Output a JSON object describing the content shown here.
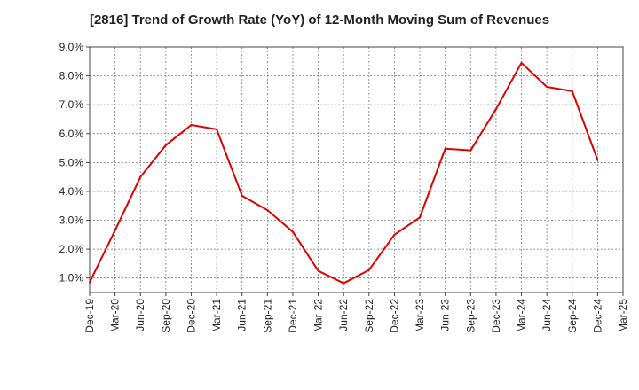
{
  "chart_data": {
    "type": "line",
    "title": "[2816]  Trend of Growth Rate (YoY) of 12-Month Moving Sum of Revenues",
    "xlabel": "",
    "ylabel": "",
    "x_ticks": [
      "Dec-19",
      "Mar-20",
      "Jun-20",
      "Sep-20",
      "Dec-20",
      "Mar-21",
      "Jun-21",
      "Sep-21",
      "Dec-21",
      "Mar-22",
      "Jun-22",
      "Sep-22",
      "Dec-22",
      "Mar-23",
      "Jun-23",
      "Sep-23",
      "Dec-23",
      "Mar-24",
      "Jun-24",
      "Sep-24",
      "Dec-24",
      "Mar-25"
    ],
    "y_ticks": [
      "1.0%",
      "2.0%",
      "3.0%",
      "4.0%",
      "5.0%",
      "6.0%",
      "7.0%",
      "8.0%",
      "9.0%"
    ],
    "ylim": [
      0.5,
      9.0
    ],
    "grid": true,
    "legend": "none",
    "series": [
      {
        "color": "#e00000",
        "x": [
          "Dec-19",
          "Mar-20",
          "Jun-20",
          "Sep-20",
          "Dec-20",
          "Mar-21",
          "Jun-21",
          "Sep-21",
          "Dec-21",
          "Mar-22",
          "Jun-22",
          "Sep-22",
          "Dec-22",
          "Mar-23",
          "Jun-23",
          "Sep-23",
          "Dec-23",
          "Mar-24",
          "Jun-24",
          "Sep-24",
          "Dec-24"
        ],
        "values": [
          0.85,
          2.65,
          4.5,
          5.6,
          6.3,
          6.15,
          3.85,
          3.35,
          2.6,
          1.25,
          0.82,
          1.28,
          2.5,
          3.1,
          5.48,
          5.42,
          6.85,
          8.45,
          7.62,
          7.47,
          5.08
        ]
      }
    ]
  }
}
